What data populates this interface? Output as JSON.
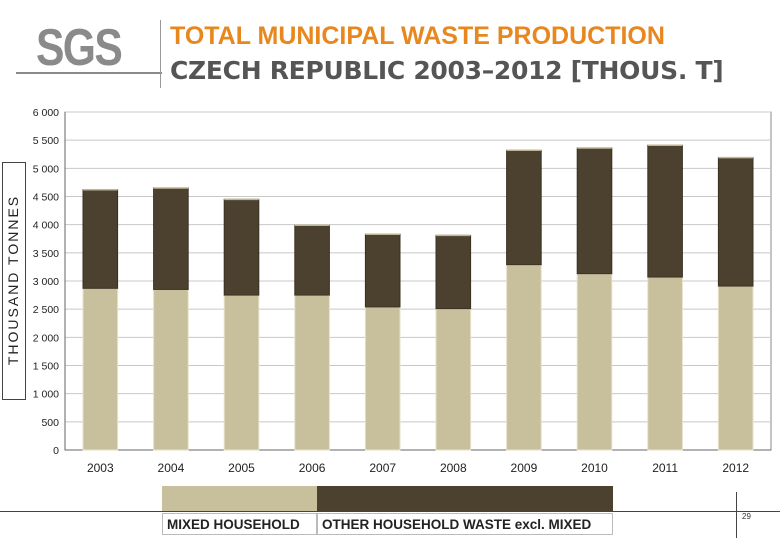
{
  "header": {
    "logo_text": "SGS",
    "title_line1": "TOTAL MUNICIPAL WASTE PRODUCTION",
    "title_line2": "CZECH REPUBLIC 2003–2012 [THOUS. T]"
  },
  "page_number": "29",
  "colors": {
    "mixed": "#c8bf9c",
    "other": "#4b412e",
    "title_orange": "#e8871e"
  },
  "chart_data": {
    "type": "bar",
    "stacked": true,
    "ylabel": "THOUSAND TONNES",
    "xlabel": "",
    "ylim": [
      0,
      6000
    ],
    "yticks": [
      0,
      500,
      1000,
      1500,
      2000,
      2500,
      3000,
      3500,
      4000,
      4500,
      5000,
      5500,
      6000
    ],
    "ytick_labels": [
      "0",
      "500",
      "1 000",
      "1 500",
      "2 000",
      "2 500",
      "3 000",
      "3 500",
      "4 000",
      "4 500",
      "5 000",
      "5 500",
      "6 000"
    ],
    "grid": true,
    "legend_placement": "bottom",
    "categories": [
      "2003",
      "2004",
      "2005",
      "2006",
      "2007",
      "2008",
      "2009",
      "2010",
      "2011",
      "2012"
    ],
    "series": [
      {
        "name": "MIXED HOUSEHOLD",
        "values": [
          2870,
          2850,
          2750,
          2750,
          2540,
          2510,
          3290,
          3130,
          3070,
          2910
        ]
      },
      {
        "name": "OTHER HOUSEHOLD WASTE excl. MIXED",
        "values": [
          1750,
          1800,
          1700,
          1240,
          1290,
          1300,
          2030,
          2230,
          2340,
          2280
        ]
      }
    ]
  }
}
